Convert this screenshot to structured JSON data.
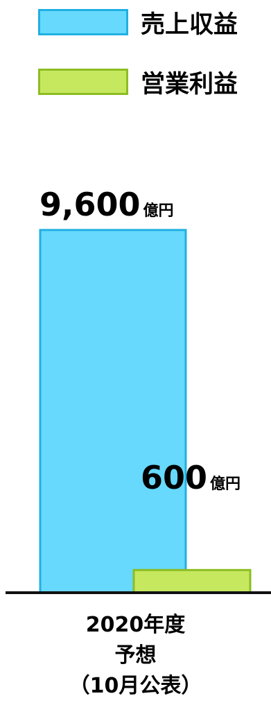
{
  "chart_data": {
    "type": "bar",
    "categories": [
      "2020年度予想（10月公表）"
    ],
    "category_lines": [
      "2020年度",
      "予想",
      "（10月公表）"
    ],
    "series": [
      {
        "name": "売上収益",
        "values": [
          9600
        ],
        "value_label": "9,600",
        "unit": "億円",
        "color": "#66d9fd",
        "border_color": "#20b0e2"
      },
      {
        "name": "営業利益",
        "values": [
          600
        ],
        "value_label": "600",
        "unit": "億円",
        "color": "#c6e85f",
        "border_color": "#8cbd22"
      }
    ],
    "ylim": [
      0,
      10000
    ],
    "grid": false,
    "legend_position": "top"
  }
}
